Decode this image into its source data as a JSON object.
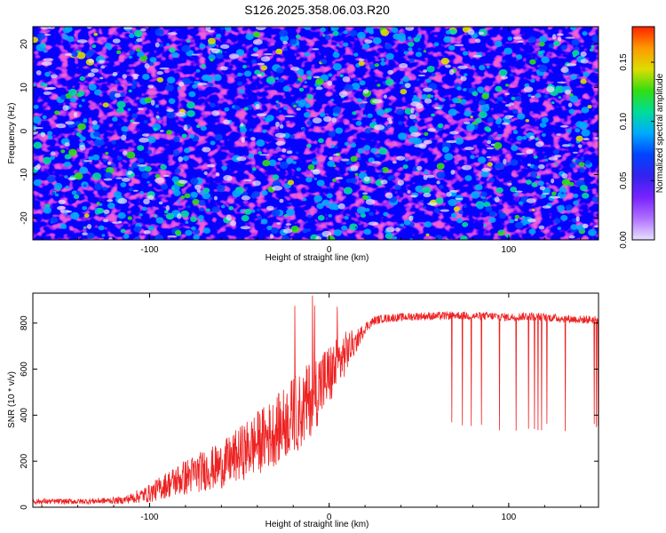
{
  "figure_title": "S126.2025.358.06.03.R20",
  "colors": {
    "snr_line": "#ee2222",
    "colormap": [
      "#e8e0ff",
      "#b070ff",
      "#7722ff",
      "#3322ee",
      "#0044ff",
      "#00aaff",
      "#00dd99",
      "#33dd11",
      "#dddd00",
      "#ff9900",
      "#ff2200"
    ]
  },
  "chart_data": [
    {
      "type": "heatmap",
      "title": "S126.2025.358.06.03.R20",
      "xlabel": "Height of straight line (km)",
      "ylabel": "Frequency (Hz)",
      "xlim": [
        -165,
        150
      ],
      "ylim": [
        -25,
        24
      ],
      "xticks": [
        -100,
        0,
        100
      ],
      "yticks": [
        -20,
        -10,
        0,
        10,
        20
      ],
      "colorbar": {
        "label": "Normalized spectral amplitude",
        "range": [
          0,
          0.18
        ],
        "ticks": [
          "0.00",
          "0.05",
          "0.10",
          "0.15"
        ]
      }
    },
    {
      "type": "line",
      "xlabel": "Height of straight line (km)",
      "ylabel": "SNR (10 * v/v)",
      "xlim": [
        -165,
        150
      ],
      "ylim": [
        0,
        930
      ],
      "xticks": [
        -100,
        0,
        100
      ],
      "yticks": [
        0,
        200,
        400,
        600,
        800
      ],
      "series": [
        {
          "name": "SNR",
          "x": [
            -165,
            -140,
            -115,
            -100,
            -90,
            -80,
            -70,
            -60,
            -50,
            -40,
            -30,
            -20,
            -15,
            -10,
            -5,
            0,
            5,
            10,
            15,
            20,
            25,
            30,
            40,
            50,
            60,
            70,
            80,
            90,
            100,
            110,
            120,
            130,
            140,
            150
          ],
          "y": [
            25,
            25,
            30,
            60,
            100,
            130,
            160,
            180,
            230,
            280,
            330,
            400,
            420,
            480,
            530,
            570,
            620,
            680,
            720,
            780,
            810,
            820,
            825,
            830,
            830,
            835,
            830,
            830,
            825,
            830,
            825,
            820,
            815,
            815
          ],
          "spread": [
            12,
            12,
            15,
            40,
            60,
            80,
            90,
            100,
            120,
            140,
            150,
            170,
            170,
            170,
            160,
            140,
            120,
            90,
            50,
            25,
            20,
            18,
            18,
            18,
            18,
            18,
            18,
            18,
            18,
            18,
            18,
            18,
            18,
            18
          ]
        }
      ]
    }
  ]
}
